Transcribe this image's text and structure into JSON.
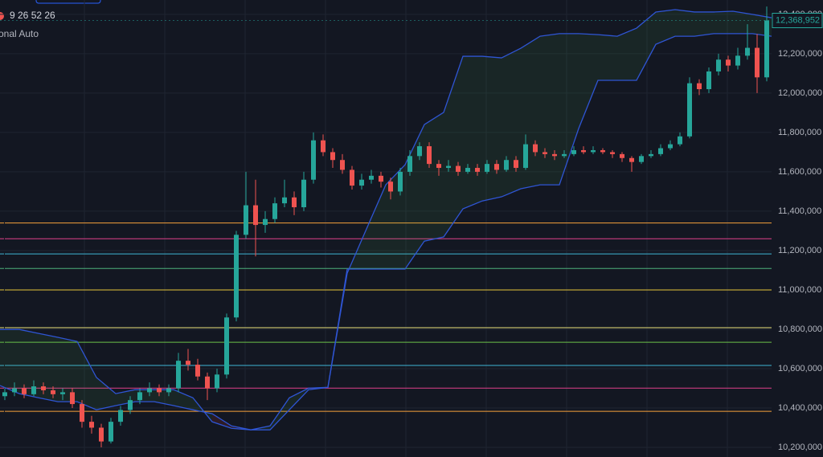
{
  "chart_data": {
    "type": "candlestick",
    "indicator_values": "9 26 52 26",
    "scale_mode": "onal Auto",
    "up_color": "#26a69a",
    "down_color": "#ef5350",
    "cloud_color": "#2f55d4",
    "grid": true,
    "ylim": [
      10151000,
      12473000
    ],
    "yticks": [
      {
        "value": 10200000,
        "label": "10,200,000"
      },
      {
        "value": 10400000,
        "label": "10,400,000"
      },
      {
        "value": 10600000,
        "label": "10,600,000"
      },
      {
        "value": 10800000,
        "label": "10,800,000"
      },
      {
        "value": 11000000,
        "label": "11,000,000"
      },
      {
        "value": 11200000,
        "label": "11,200,000"
      },
      {
        "value": 11400000,
        "label": "11,400,000"
      },
      {
        "value": 11600000,
        "label": "11,600,000"
      },
      {
        "value": 11800000,
        "label": "11,800,000"
      },
      {
        "value": 12000000,
        "label": "12,000,000"
      },
      {
        "value": 12200000,
        "label": "12,200,000"
      },
      {
        "value": 12400000,
        "label": "12,400,000"
      }
    ],
    "last_price": {
      "value": 12368952,
      "label": "12,368,952"
    },
    "levels": [
      {
        "value": 11340000,
        "color": "#f7a23b"
      },
      {
        "value": 11260000,
        "color": "#e0408a"
      },
      {
        "value": 11183000,
        "color": "#3fb5d6"
      },
      {
        "value": 11109000,
        "color": "#4caf7a"
      },
      {
        "value": 11000000,
        "color": "#e6c63a"
      },
      {
        "value": 10808000,
        "color": "#e8e07a"
      },
      {
        "value": 10734000,
        "color": "#6cc24a"
      },
      {
        "value": 10616000,
        "color": "#3fb5d6"
      },
      {
        "value": 10501000,
        "color": "#e0408a"
      },
      {
        "value": 10383000,
        "color": "#f7a23b"
      }
    ],
    "ohlc": [
      [
        10460000,
        10500000,
        10440000,
        10480000
      ],
      [
        10480000,
        10530000,
        10460000,
        10500000
      ],
      [
        10500000,
        10520000,
        10450000,
        10470000
      ],
      [
        10470000,
        10540000,
        10460000,
        10510000
      ],
      [
        10510000,
        10530000,
        10470000,
        10490000
      ],
      [
        10490000,
        10510000,
        10450000,
        10470000
      ],
      [
        10470000,
        10500000,
        10440000,
        10480000
      ],
      [
        10480000,
        10500000,
        10400000,
        10420000
      ],
      [
        10420000,
        10440000,
        10300000,
        10330000
      ],
      [
        10330000,
        10360000,
        10270000,
        10300000
      ],
      [
        10300000,
        10320000,
        10200000,
        10230000
      ],
      [
        10230000,
        10350000,
        10220000,
        10330000
      ],
      [
        10330000,
        10410000,
        10310000,
        10390000
      ],
      [
        10390000,
        10460000,
        10370000,
        10440000
      ],
      [
        10440000,
        10500000,
        10420000,
        10480000
      ],
      [
        10480000,
        10530000,
        10460000,
        10500000
      ],
      [
        10500000,
        10520000,
        10460000,
        10480000
      ],
      [
        10480000,
        10520000,
        10460000,
        10500000
      ],
      [
        10500000,
        10680000,
        10480000,
        10640000
      ],
      [
        10640000,
        10700000,
        10590000,
        10620000
      ],
      [
        10620000,
        10650000,
        10540000,
        10560000
      ],
      [
        10560000,
        10580000,
        10440000,
        10500000
      ],
      [
        10500000,
        10600000,
        10480000,
        10570000
      ],
      [
        10570000,
        10880000,
        10550000,
        10860000
      ],
      [
        10860000,
        11300000,
        10840000,
        11280000
      ],
      [
        11280000,
        11600000,
        11260000,
        11430000
      ],
      [
        11430000,
        11560000,
        11170000,
        11330000
      ],
      [
        11330000,
        11400000,
        11290000,
        11360000
      ],
      [
        11360000,
        11470000,
        11340000,
        11440000
      ],
      [
        11440000,
        11560000,
        11420000,
        11470000
      ],
      [
        11470000,
        11500000,
        11380000,
        11420000
      ],
      [
        11420000,
        11600000,
        11400000,
        11560000
      ],
      [
        11560000,
        11800000,
        11540000,
        11760000
      ],
      [
        11760000,
        11790000,
        11680000,
        11700000
      ],
      [
        11700000,
        11720000,
        11620000,
        11660000
      ],
      [
        11660000,
        11690000,
        11590000,
        11610000
      ],
      [
        11610000,
        11630000,
        11510000,
        11530000
      ],
      [
        11530000,
        11590000,
        11510000,
        11560000
      ],
      [
        11560000,
        11610000,
        11540000,
        11580000
      ],
      [
        11580000,
        11600000,
        11520000,
        11550000
      ],
      [
        11550000,
        11570000,
        11460000,
        11500000
      ],
      [
        11500000,
        11620000,
        11480000,
        11600000
      ],
      [
        11600000,
        11710000,
        11580000,
        11680000
      ],
      [
        11680000,
        11750000,
        11660000,
        11730000
      ],
      [
        11730000,
        11750000,
        11620000,
        11640000
      ],
      [
        11640000,
        11660000,
        11580000,
        11620000
      ],
      [
        11620000,
        11660000,
        11600000,
        11630000
      ],
      [
        11630000,
        11650000,
        11580000,
        11600000
      ],
      [
        11600000,
        11640000,
        11590000,
        11620000
      ],
      [
        11620000,
        11640000,
        11580000,
        11600000
      ],
      [
        11600000,
        11660000,
        11590000,
        11640000
      ],
      [
        11640000,
        11660000,
        11590000,
        11610000
      ],
      [
        11610000,
        11680000,
        11600000,
        11660000
      ],
      [
        11660000,
        11680000,
        11600000,
        11620000
      ],
      [
        11620000,
        11790000,
        11610000,
        11740000
      ],
      [
        11740000,
        11760000,
        11680000,
        11700000
      ],
      [
        11700000,
        11720000,
        11670000,
        11690000
      ],
      [
        11690000,
        11710000,
        11660000,
        11680000
      ],
      [
        11680000,
        11710000,
        11670000,
        11690000
      ],
      [
        11690000,
        11730000,
        11680000,
        11710000
      ],
      [
        11710000,
        11730000,
        11690000,
        11700000
      ],
      [
        11700000,
        11730000,
        11690000,
        11710000
      ],
      [
        11710000,
        11720000,
        11690000,
        11700000
      ],
      [
        11700000,
        11710000,
        11670000,
        11690000
      ],
      [
        11690000,
        11700000,
        11650000,
        11670000
      ],
      [
        11670000,
        11680000,
        11600000,
        11650000
      ],
      [
        11650000,
        11690000,
        11640000,
        11680000
      ],
      [
        11680000,
        11710000,
        11670000,
        11690000
      ],
      [
        11690000,
        11740000,
        11680000,
        11720000
      ],
      [
        11720000,
        11760000,
        11710000,
        11740000
      ],
      [
        11740000,
        11800000,
        11730000,
        11780000
      ],
      [
        11780000,
        12080000,
        11770000,
        12050000
      ],
      [
        12050000,
        12070000,
        11990000,
        12020000
      ],
      [
        12020000,
        12130000,
        12000000,
        12110000
      ],
      [
        12110000,
        12200000,
        12090000,
        12170000
      ],
      [
        12170000,
        12190000,
        12110000,
        12140000
      ],
      [
        12140000,
        12230000,
        12120000,
        12190000
      ],
      [
        12190000,
        12350000,
        12170000,
        12230000
      ],
      [
        12230000,
        12300000,
        12000000,
        12080000
      ],
      [
        12080000,
        12440000,
        12060000,
        12368952
      ]
    ],
    "cloud": {
      "span_a": [
        10799000,
        10799000,
        10779000,
        10759000,
        10738000,
        10555000,
        10473000,
        10493000,
        10493000,
        10493000,
        10452000,
        10330000,
        10297000,
        10289000,
        10309000,
        10452000,
        10501000,
        10505000,
        11085000,
        11310000,
        11534000,
        11636000,
        11840000,
        11902000,
        12187000,
        12187000,
        12179000,
        12228000,
        12289000,
        12302000,
        12302000,
        12297000,
        12289000,
        12330000,
        12412000,
        12424000,
        12412000,
        12412000,
        12416000,
        12400000,
        12383000
      ],
      "span_b": [
        10514000,
        10473000,
        10452000,
        10432000,
        10432000,
        10391000,
        10412000,
        10432000,
        10432000,
        10412000,
        10391000,
        10371000,
        10309000,
        10289000,
        10289000,
        10391000,
        10493000,
        10505000,
        11106000,
        11106000,
        11106000,
        11106000,
        11248000,
        11269000,
        11412000,
        11452000,
        11473000,
        11514000,
        11534000,
        11534000,
        11820000,
        12065000,
        12065000,
        12065000,
        12248000,
        12289000,
        12289000,
        12302000,
        12302000,
        12302000,
        12289000
      ]
    }
  }
}
